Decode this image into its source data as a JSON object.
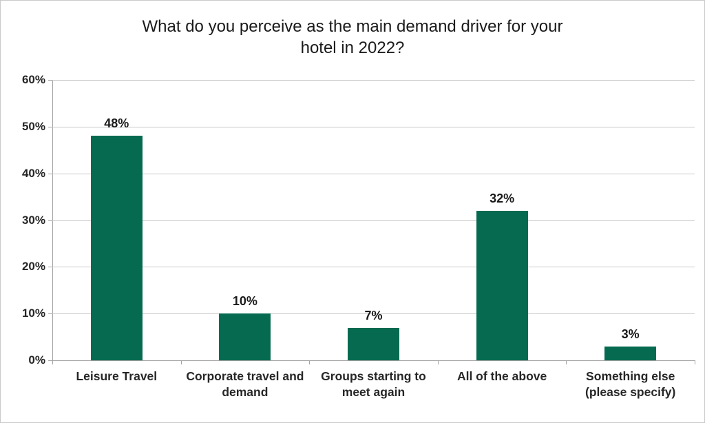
{
  "title_lines": [
    "What do you perceive as the main demand driver for your",
    "hotel in 2022?"
  ],
  "colors": {
    "bar": "#066a50",
    "gridline": "#c8c8c8",
    "axis": "#a3a3a3",
    "title_text": "#1a1a1a",
    "label_text": "#262626"
  },
  "chart_data": {
    "type": "bar",
    "title": "What do you perceive as the main demand driver for your hotel in 2022?",
    "categories": [
      "Leisure Travel",
      "Corporate travel and demand",
      "Groups starting to meet again",
      "All of the above",
      "Something else (please specify)"
    ],
    "values": [
      48,
      10,
      7,
      32,
      3
    ],
    "data_labels": [
      "48%",
      "10%",
      "7%",
      "32%",
      "3%"
    ],
    "xlabel": "",
    "ylabel": "",
    "ylim": [
      0,
      60
    ],
    "ytick_step": 10,
    "ytick_labels": [
      "0%",
      "10%",
      "20%",
      "30%",
      "40%",
      "50%",
      "60%"
    ],
    "grid": true,
    "legend_position": "none",
    "bar_color": "#066a50"
  }
}
